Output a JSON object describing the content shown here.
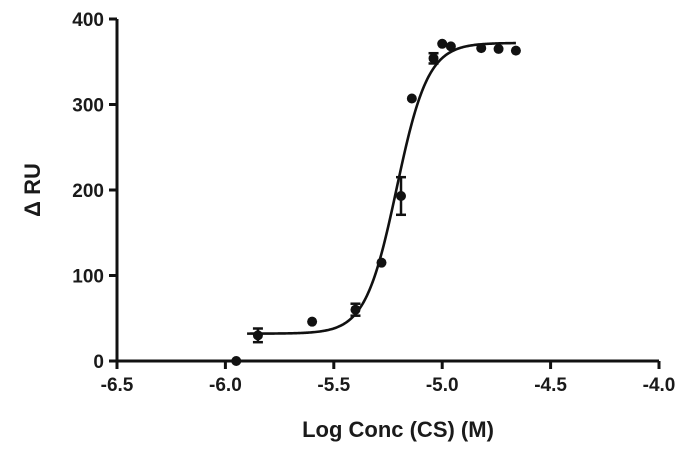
{
  "chart_data": {
    "type": "scatter",
    "title": "",
    "xlabel": "Log Conc (CS) (M)",
    "ylabel": "Δ RU",
    "xlim": [
      -6.5,
      -4.0
    ],
    "ylim": [
      0,
      400
    ],
    "x_ticks": [
      -6.5,
      -6.0,
      -5.5,
      -5.0,
      -4.5,
      -4.0
    ],
    "x_tick_labels": [
      "-6.5",
      "-6.0",
      "-5.5",
      "-5.0",
      "-4.5",
      "-4.0"
    ],
    "y_ticks": [
      0,
      100,
      200,
      300,
      400
    ],
    "y_tick_labels": [
      "0",
      "100",
      "200",
      "300",
      "400"
    ],
    "grid": false,
    "legend": "none",
    "points": [
      {
        "x": -5.95,
        "y": 0,
        "err": 0
      },
      {
        "x": -5.85,
        "y": 30,
        "err": 8
      },
      {
        "x": -5.6,
        "y": 46,
        "err": 0
      },
      {
        "x": -5.4,
        "y": 60,
        "err": 7
      },
      {
        "x": -5.28,
        "y": 115,
        "err": 0
      },
      {
        "x": -5.19,
        "y": 193,
        "err": 22
      },
      {
        "x": -5.14,
        "y": 307,
        "err": 0
      },
      {
        "x": -5.04,
        "y": 354,
        "err": 6
      },
      {
        "x": -5.0,
        "y": 371,
        "err": 0
      },
      {
        "x": -4.96,
        "y": 368,
        "err": 0
      },
      {
        "x": -4.82,
        "y": 366,
        "err": 0
      },
      {
        "x": -4.74,
        "y": 365,
        "err": 0
      },
      {
        "x": -4.66,
        "y": 363,
        "err": 0
      }
    ],
    "fit": {
      "model": "sigmoidal dose-response",
      "bottom": 32,
      "top": 372,
      "logEC50": -5.21,
      "hill": 6,
      "x_range": [
        -5.9,
        -4.66
      ]
    },
    "colors": {
      "marker": "#111111",
      "line": "#111111",
      "axis": "#111111"
    }
  }
}
